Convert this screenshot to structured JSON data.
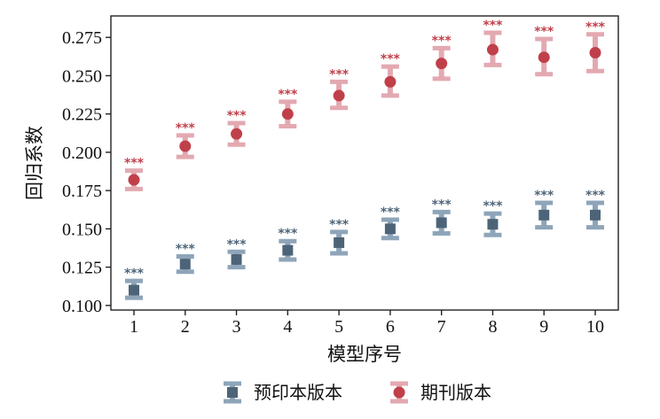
{
  "chart_data": {
    "type": "scatter",
    "title": "",
    "xlabel": "模型序号",
    "ylabel": "回归系数",
    "x": [
      1,
      2,
      3,
      4,
      5,
      6,
      7,
      8,
      9,
      10
    ],
    "x_ticks": [
      "1",
      "2",
      "3",
      "4",
      "5",
      "6",
      "7",
      "8",
      "9",
      "10"
    ],
    "xlim": [
      0.55,
      10.45
    ],
    "ylim": [
      0.097,
      0.289
    ],
    "y_ticks": [
      "0.100",
      "0.125",
      "0.150",
      "0.175",
      "0.200",
      "0.225",
      "0.250",
      "0.275"
    ],
    "grid": false,
    "legend_position": "bottom",
    "series": [
      {
        "name": "预印本版本",
        "marker": "square",
        "color": "#4d6478",
        "error_color": "#8ea5b9",
        "values": [
          0.11,
          0.127,
          0.13,
          0.136,
          0.141,
          0.15,
          0.154,
          0.153,
          0.159,
          0.159
        ],
        "ci_low": [
          0.105,
          0.122,
          0.125,
          0.13,
          0.134,
          0.144,
          0.147,
          0.146,
          0.151,
          0.151
        ],
        "ci_high": [
          0.116,
          0.132,
          0.135,
          0.142,
          0.148,
          0.156,
          0.161,
          0.16,
          0.167,
          0.167
        ],
        "labels": [
          "***",
          "***",
          "***",
          "***",
          "***",
          "***",
          "***",
          "***",
          "***",
          "***"
        ]
      },
      {
        "name": "期刊版本",
        "marker": "circle",
        "color": "#c0404a",
        "error_color": "#e3a9b1",
        "values": [
          0.182,
          0.204,
          0.212,
          0.225,
          0.237,
          0.246,
          0.258,
          0.267,
          0.262,
          0.265
        ],
        "ci_low": [
          0.176,
          0.197,
          0.205,
          0.217,
          0.229,
          0.237,
          0.248,
          0.257,
          0.251,
          0.253
        ],
        "ci_high": [
          0.188,
          0.211,
          0.219,
          0.233,
          0.246,
          0.256,
          0.268,
          0.278,
          0.274,
          0.277
        ],
        "labels": [
          "***",
          "***",
          "***",
          "***",
          "***",
          "***",
          "***",
          "***",
          "***",
          "***"
        ]
      }
    ]
  }
}
